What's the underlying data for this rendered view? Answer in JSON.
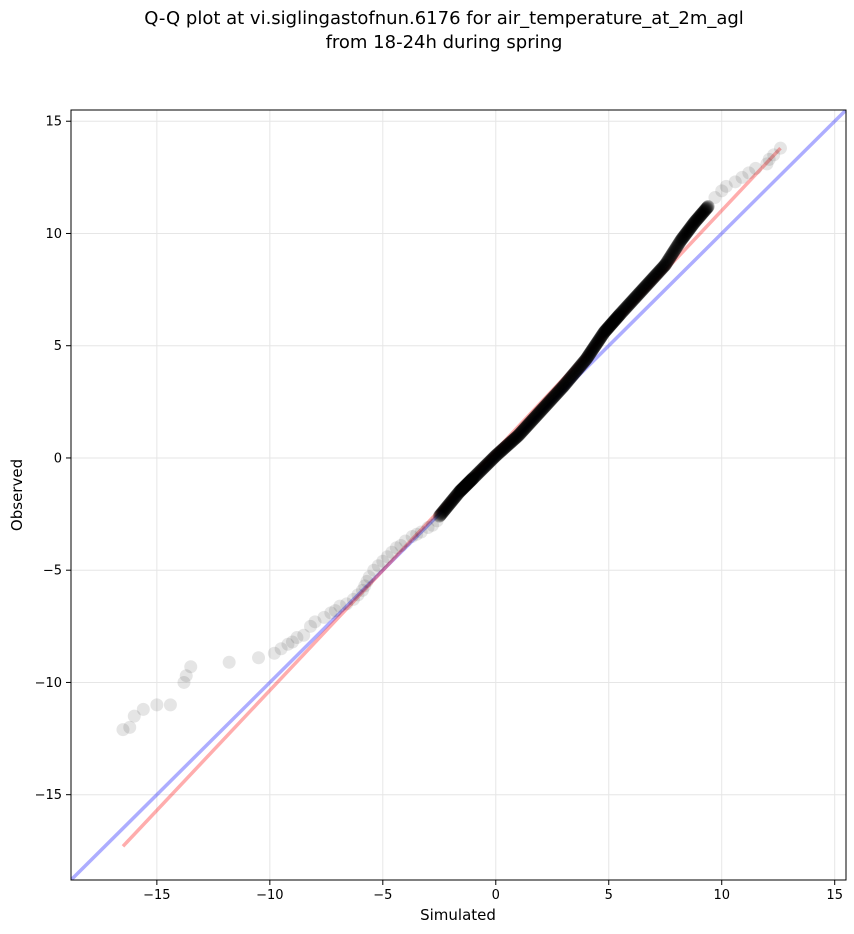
{
  "chart_data": {
    "type": "scatter",
    "title_lines": [
      "Q-Q plot at vi.siglingastofnun.6176 for air_temperature_at_2m_agl",
      "from 18-24h during spring"
    ],
    "xlabel": "Simulated",
    "ylabel": "Observed",
    "xlim": [
      -18.8,
      15.5
    ],
    "ylim": [
      -18.8,
      15.5
    ],
    "x_ticks": [
      -15,
      -10,
      -5,
      0,
      5,
      10,
      15
    ],
    "y_ticks": [
      -15,
      -10,
      -5,
      0,
      5,
      10,
      15
    ],
    "x_tick_labels": [
      "−15",
      "−10",
      "−5",
      "0",
      "5",
      "10",
      "15"
    ],
    "y_tick_labels": [
      "−15",
      "−10",
      "−5",
      "0",
      "5",
      "10",
      "15"
    ],
    "grid": true,
    "colors": {
      "points": "#000000",
      "fit_line": "#ff0000",
      "identity_line": "#0000ff",
      "grid": "#e6e6e6"
    },
    "fit_line": {
      "x": [
        -16.5,
        12.6
      ],
      "y": [
        -17.3,
        13.8
      ]
    },
    "identity_line": {
      "x": [
        -18.8,
        15.5
      ],
      "y": [
        -18.8,
        15.5
      ]
    },
    "tail_points": {
      "x": [
        -16.5,
        -16.2,
        -16.0,
        -15.6,
        -15.0,
        -14.4,
        -13.8,
        -13.7,
        -13.5,
        -11.8,
        -10.5,
        -9.8,
        -9.5,
        -9.2,
        -9.0,
        -8.8,
        -8.5,
        -8.2,
        -8.0,
        -7.6,
        -7.3,
        -7.1,
        -6.9,
        -6.6,
        -6.3,
        -6.1,
        -5.9,
        -5.8,
        -5.7,
        -5.6,
        -5.4,
        -5.2,
        -5.0,
        -4.8,
        -4.6,
        -4.4,
        -4.2,
        -4.0,
        -3.7,
        -3.5,
        -3.3,
        -3.0,
        -2.8,
        -2.6,
        9.4,
        9.7,
        10.0,
        10.2,
        10.6,
        10.9,
        11.2,
        11.5,
        12.0,
        12.1,
        12.3,
        12.6
      ],
      "y": [
        -12.1,
        -12.0,
        -11.5,
        -11.2,
        -11.0,
        -11.0,
        -10.0,
        -9.7,
        -9.3,
        -9.1,
        -8.9,
        -8.7,
        -8.5,
        -8.3,
        -8.2,
        -8.0,
        -7.9,
        -7.5,
        -7.3,
        -7.1,
        -6.9,
        -6.8,
        -6.6,
        -6.5,
        -6.3,
        -6.1,
        -5.9,
        -5.7,
        -5.5,
        -5.3,
        -5.0,
        -4.8,
        -4.6,
        -4.4,
        -4.2,
        -4.0,
        -3.9,
        -3.7,
        -3.5,
        -3.4,
        -3.3,
        -3.1,
        -3.0,
        -2.8,
        11.2,
        11.6,
        11.9,
        12.1,
        12.3,
        12.5,
        12.7,
        12.9,
        13.1,
        13.3,
        13.5,
        13.8
      ]
    },
    "dense_segments": [
      {
        "x": [
          -2.5,
          -1.6,
          -1.0,
          0.0,
          1.0,
          2.0,
          3.0
        ],
        "y": [
          -2.6,
          -1.5,
          -0.9,
          0.1,
          1.0,
          2.1,
          3.2
        ],
        "count": 500
      },
      {
        "x": [
          3.0,
          4.0,
          4.8,
          5.5,
          6.5,
          7.5
        ],
        "y": [
          3.2,
          4.4,
          5.6,
          6.4,
          7.5,
          8.6
        ],
        "count": 420
      },
      {
        "x": [
          7.5,
          8.2,
          8.8,
          9.4
        ],
        "y": [
          8.6,
          9.7,
          10.5,
          11.2
        ],
        "count": 180
      }
    ]
  }
}
